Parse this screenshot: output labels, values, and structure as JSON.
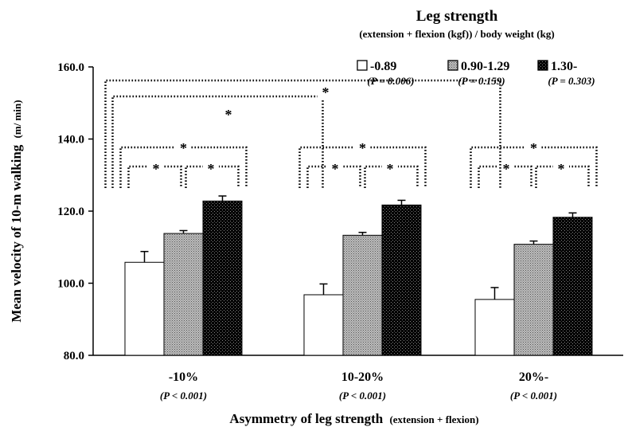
{
  "chart_data": {
    "type": "bar",
    "title": "Leg strength",
    "subtitle": "(extension + flexion (kgf)) / body weight (kg)",
    "ylabel": "Mean velocity of 10-m walking",
    "ylabel_unit": "(m/ min)",
    "xlabel": "Asymmetry of leg strength",
    "xlabel_note": "(extension + flexion)",
    "ylim": [
      80,
      160
    ],
    "yticks": [
      "80.0",
      "100.0",
      "120.0",
      "140.0",
      "160.0"
    ],
    "categories": [
      "-10%",
      "10-20%",
      "20%-"
    ],
    "category_p": [
      "(P < 0.001)",
      "(P < 0.001)",
      "(P < 0.001)"
    ],
    "series": [
      {
        "name": "-0.89",
        "p": "(P = 0.006)",
        "pattern": "white",
        "values": [
          105.8,
          96.8,
          95.5
        ],
        "errors": [
          3.0,
          3.0,
          3.3
        ]
      },
      {
        "name": "0.90-1.29",
        "p": "(P = 0.159)",
        "pattern": "gray-hatched",
        "values": [
          113.8,
          113.3,
          110.8
        ],
        "errors": [
          0.8,
          0.8,
          0.9
        ]
      },
      {
        "name": "1.30-",
        "p": "(P = 0.303)",
        "pattern": "black-dotted",
        "values": [
          122.8,
          121.7,
          118.3
        ],
        "errors": [
          1.4,
          1.3,
          1.2
        ]
      }
    ],
    "significance_marker": "*",
    "legend_position": "top-right",
    "grid": false
  }
}
